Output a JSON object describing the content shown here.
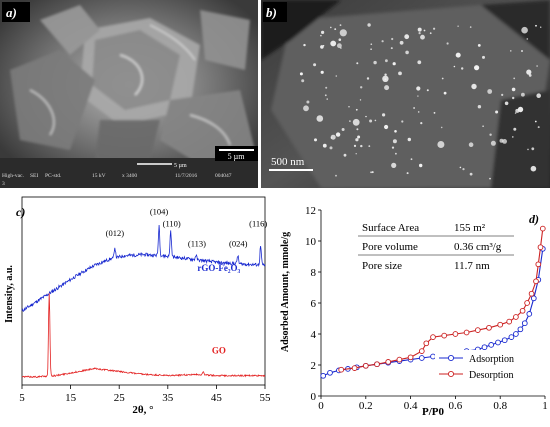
{
  "panel_a": {
    "label": "a)",
    "scalebar_label": "5 µm",
    "footer_scale": "5 µm",
    "footer": [
      "High-vac.",
      "SEI",
      "PC-std.",
      "15 kV",
      "x 3400",
      "11/7/2016",
      "004047"
    ],
    "footer_line2": "3"
  },
  "panel_b": {
    "label": "b)",
    "scalebar_label": "500 nm"
  },
  "chart_data": [
    {
      "type": "line",
      "panel_label": "c)",
      "xlabel": "2θ, °",
      "ylabel": "Intensity, a.u.",
      "xlim": [
        5,
        55
      ],
      "xticks": [
        5,
        15,
        25,
        35,
        45,
        55
      ],
      "grid": false,
      "series": [
        {
          "name": "rGO-Fe₂O₃",
          "color": "#1a2ad0",
          "baseline": [
            [
              5,
              0.58
            ],
            [
              8,
              0.66
            ],
            [
              11,
              0.74
            ],
            [
              14,
              0.82
            ],
            [
              17,
              0.9
            ],
            [
              20,
              0.97
            ],
            [
              23,
              1.02
            ],
            [
              26,
              1.05
            ],
            [
              30,
              1.06
            ],
            [
              34,
              1.05
            ],
            [
              38,
              1.03
            ],
            [
              42,
              1.01
            ],
            [
              46,
              0.99
            ],
            [
              50,
              0.98
            ],
            [
              55,
              0.97
            ]
          ],
          "peaks": [
            [
              24.1,
              0.09
            ],
            [
              33.2,
              0.26
            ],
            [
              35.6,
              0.22
            ],
            [
              40.8,
              0.04
            ],
            [
              49.4,
              0.07
            ],
            [
              54.1,
              0.16
            ]
          ]
        },
        {
          "name": "GO",
          "color": "#e32222",
          "baseline": [
            [
              5,
              0.02
            ],
            [
              8,
              0.02
            ],
            [
              12,
              0.03
            ],
            [
              16,
              0.06
            ],
            [
              20,
              0.09
            ],
            [
              24,
              0.07
            ],
            [
              30,
              0.04
            ],
            [
              35,
              0.03
            ],
            [
              41,
              0.04
            ],
            [
              45,
              0.03
            ],
            [
              50,
              0.03
            ],
            [
              55,
              0.03
            ]
          ],
          "peaks": [
            [
              10.6,
              0.7
            ],
            [
              42.3,
              0.03
            ]
          ]
        }
      ],
      "annotations": [
        {
          "text": "(012)",
          "x": 24.1,
          "y": 1.22
        },
        {
          "text": "(104)",
          "x": 33.2,
          "y": 1.4
        },
        {
          "text": "(110)",
          "x": 35.8,
          "y": 1.3
        },
        {
          "text": "(113)",
          "x": 41.0,
          "y": 1.13
        },
        {
          "text": "(024)",
          "x": 49.5,
          "y": 1.13
        },
        {
          "text": "(116)",
          "x": 53.6,
          "y": 1.3
        }
      ],
      "series_labels": [
        {
          "text": "rGO-Fe₂O₃",
          "x": 45.5,
          "y": 0.92
        },
        {
          "text": "GO",
          "x": 45.5,
          "y": 0.22
        }
      ]
    },
    {
      "type": "line",
      "panel_label": "d)",
      "xlabel": "P/P0",
      "ylabel": "Adsorbed Amount, mmole/g",
      "xlim": [
        0,
        1
      ],
      "ylim": [
        0,
        12
      ],
      "xticks": [
        "0",
        "0.2",
        "0.4",
        "0.6",
        "0.8",
        "1"
      ],
      "yticks": [
        "0",
        "2",
        "4",
        "6",
        "8",
        "10",
        "12"
      ],
      "grid": false,
      "legend_position": "bottom-right",
      "series": [
        {
          "name": "Adsorption",
          "color": "#1a2ad0",
          "x": [
            0.01,
            0.04,
            0.08,
            0.12,
            0.16,
            0.2,
            0.25,
            0.3,
            0.35,
            0.4,
            0.45,
            0.5,
            0.55,
            0.6,
            0.65,
            0.7,
            0.73,
            0.76,
            0.79,
            0.82,
            0.85,
            0.87,
            0.89,
            0.91,
            0.93,
            0.95,
            0.97,
            0.99
          ],
          "y": [
            1.3,
            1.5,
            1.65,
            1.75,
            1.85,
            1.95,
            2.05,
            2.15,
            2.25,
            2.35,
            2.45,
            2.55,
            2.65,
            2.75,
            2.9,
            3.0,
            3.15,
            3.3,
            3.45,
            3.6,
            3.8,
            4.0,
            4.3,
            4.7,
            5.3,
            6.3,
            7.5,
            9.5
          ]
        },
        {
          "name": "Desorption",
          "color": "#cc2222",
          "x": [
            0.09,
            0.15,
            0.2,
            0.25,
            0.3,
            0.35,
            0.4,
            0.45,
            0.47,
            0.5,
            0.55,
            0.6,
            0.65,
            0.7,
            0.75,
            0.8,
            0.84,
            0.87,
            0.9,
            0.92,
            0.94,
            0.96,
            0.97,
            0.98,
            0.99
          ],
          "y": [
            1.7,
            1.8,
            1.95,
            2.05,
            2.2,
            2.35,
            2.5,
            2.9,
            3.4,
            3.8,
            3.9,
            4.0,
            4.1,
            4.25,
            4.4,
            4.6,
            4.8,
            5.1,
            5.5,
            6.0,
            6.6,
            7.4,
            8.5,
            9.6,
            10.8
          ]
        }
      ],
      "table": [
        [
          "Surface Area",
          "155 m²"
        ],
        [
          "Pore volume",
          "0.36 cm³/g"
        ],
        [
          "Pore size",
          "11.7 nm"
        ]
      ]
    }
  ]
}
